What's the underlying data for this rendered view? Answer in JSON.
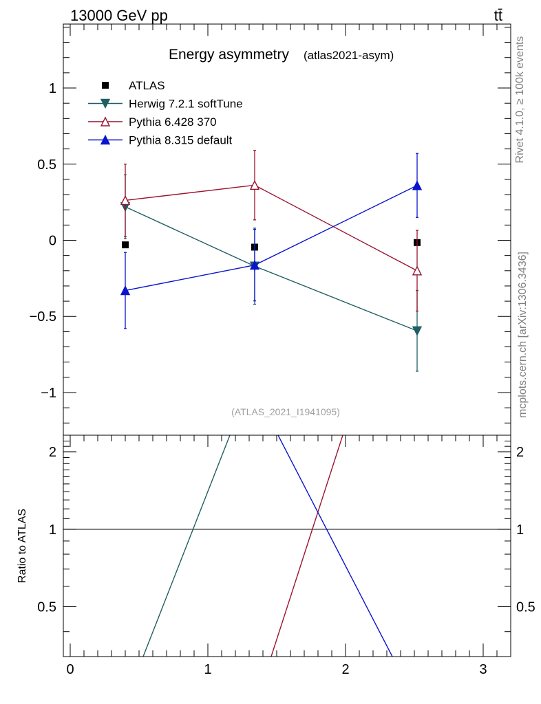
{
  "header": {
    "beam_label": "13000 GeV pp",
    "process_label": "tt̄"
  },
  "side_labels": {
    "rivet": "Rivet 4.1.0, ≥ 100k events",
    "source": "mcplots.cern.ch [arXiv:1306.3436]"
  },
  "chart_data": [
    {
      "type": "scatter",
      "title": "Energy asymmetry",
      "subtitle": "(atlas2021-asym)",
      "watermark": "(ATLAS_2021_I1941095)",
      "xlim": [
        -0.05,
        3.2
      ],
      "ylim": [
        -1.28,
        1.42
      ],
      "yticks": [
        -1,
        -0.5,
        0,
        0.5,
        1
      ],
      "ytick_labels": [
        "−1",
        "−0.5",
        "0",
        "0.5",
        "1"
      ],
      "x": [
        0.4,
        1.34,
        2.52
      ],
      "legend_position": "top-left",
      "series": [
        {
          "name": "ATLAS",
          "color": "#000000",
          "marker": "square",
          "values": [
            -0.03,
            -0.045,
            -0.015
          ],
          "errors": [
            0,
            0,
            0
          ],
          "line": false
        },
        {
          "name": "Herwig 7.2.1 softTune",
          "color": "#1f5f63",
          "marker": "triangle-down",
          "values": [
            0.22,
            -0.17,
            -0.595
          ],
          "errors": [
            0.21,
            0.25,
            0.265
          ],
          "line": true
        },
        {
          "name": "Pythia 6.428 370",
          "color": "#99142f",
          "marker": "triangle-up-open",
          "values": [
            0.262,
            0.362,
            -0.2
          ],
          "errors": [
            0.238,
            0.228,
            0.265
          ],
          "line": true
        },
        {
          "name": "Pythia 8.315 default",
          "color": "#0b14cc",
          "marker": "triangle-up",
          "values": [
            -0.33,
            -0.163,
            0.36
          ],
          "errors": [
            0.25,
            0.235,
            0.21
          ],
          "line": true
        }
      ]
    },
    {
      "type": "line",
      "ylabel": "Ratio to ATLAS",
      "xlim": [
        -0.05,
        3.2
      ],
      "ylim": [
        0.32,
        2.32
      ],
      "xticks": [
        0,
        1,
        2,
        3
      ],
      "xtick_labels": [
        "0",
        "1",
        "2",
        "3"
      ],
      "yticks": [
        0.5,
        1,
        2
      ],
      "ytick_labels": [
        "0.5",
        "1",
        "2"
      ],
      "reference": 1,
      "series": [
        {
          "name": "Herwig 7.2.1 softTune",
          "color": "#1f5f63",
          "points": [
            [
              0.53,
              0.32
            ],
            [
              1.16,
              2.32
            ]
          ]
        },
        {
          "name": "Pythia 6.428 370",
          "color": "#99142f",
          "points": [
            [
              1.46,
              0.32
            ],
            [
              1.98,
              2.32
            ]
          ]
        },
        {
          "name": "Pythia 8.315 default",
          "color": "#0b14cc",
          "points": [
            [
              1.51,
              2.32
            ],
            [
              2.34,
              0.32
            ]
          ]
        }
      ]
    }
  ]
}
